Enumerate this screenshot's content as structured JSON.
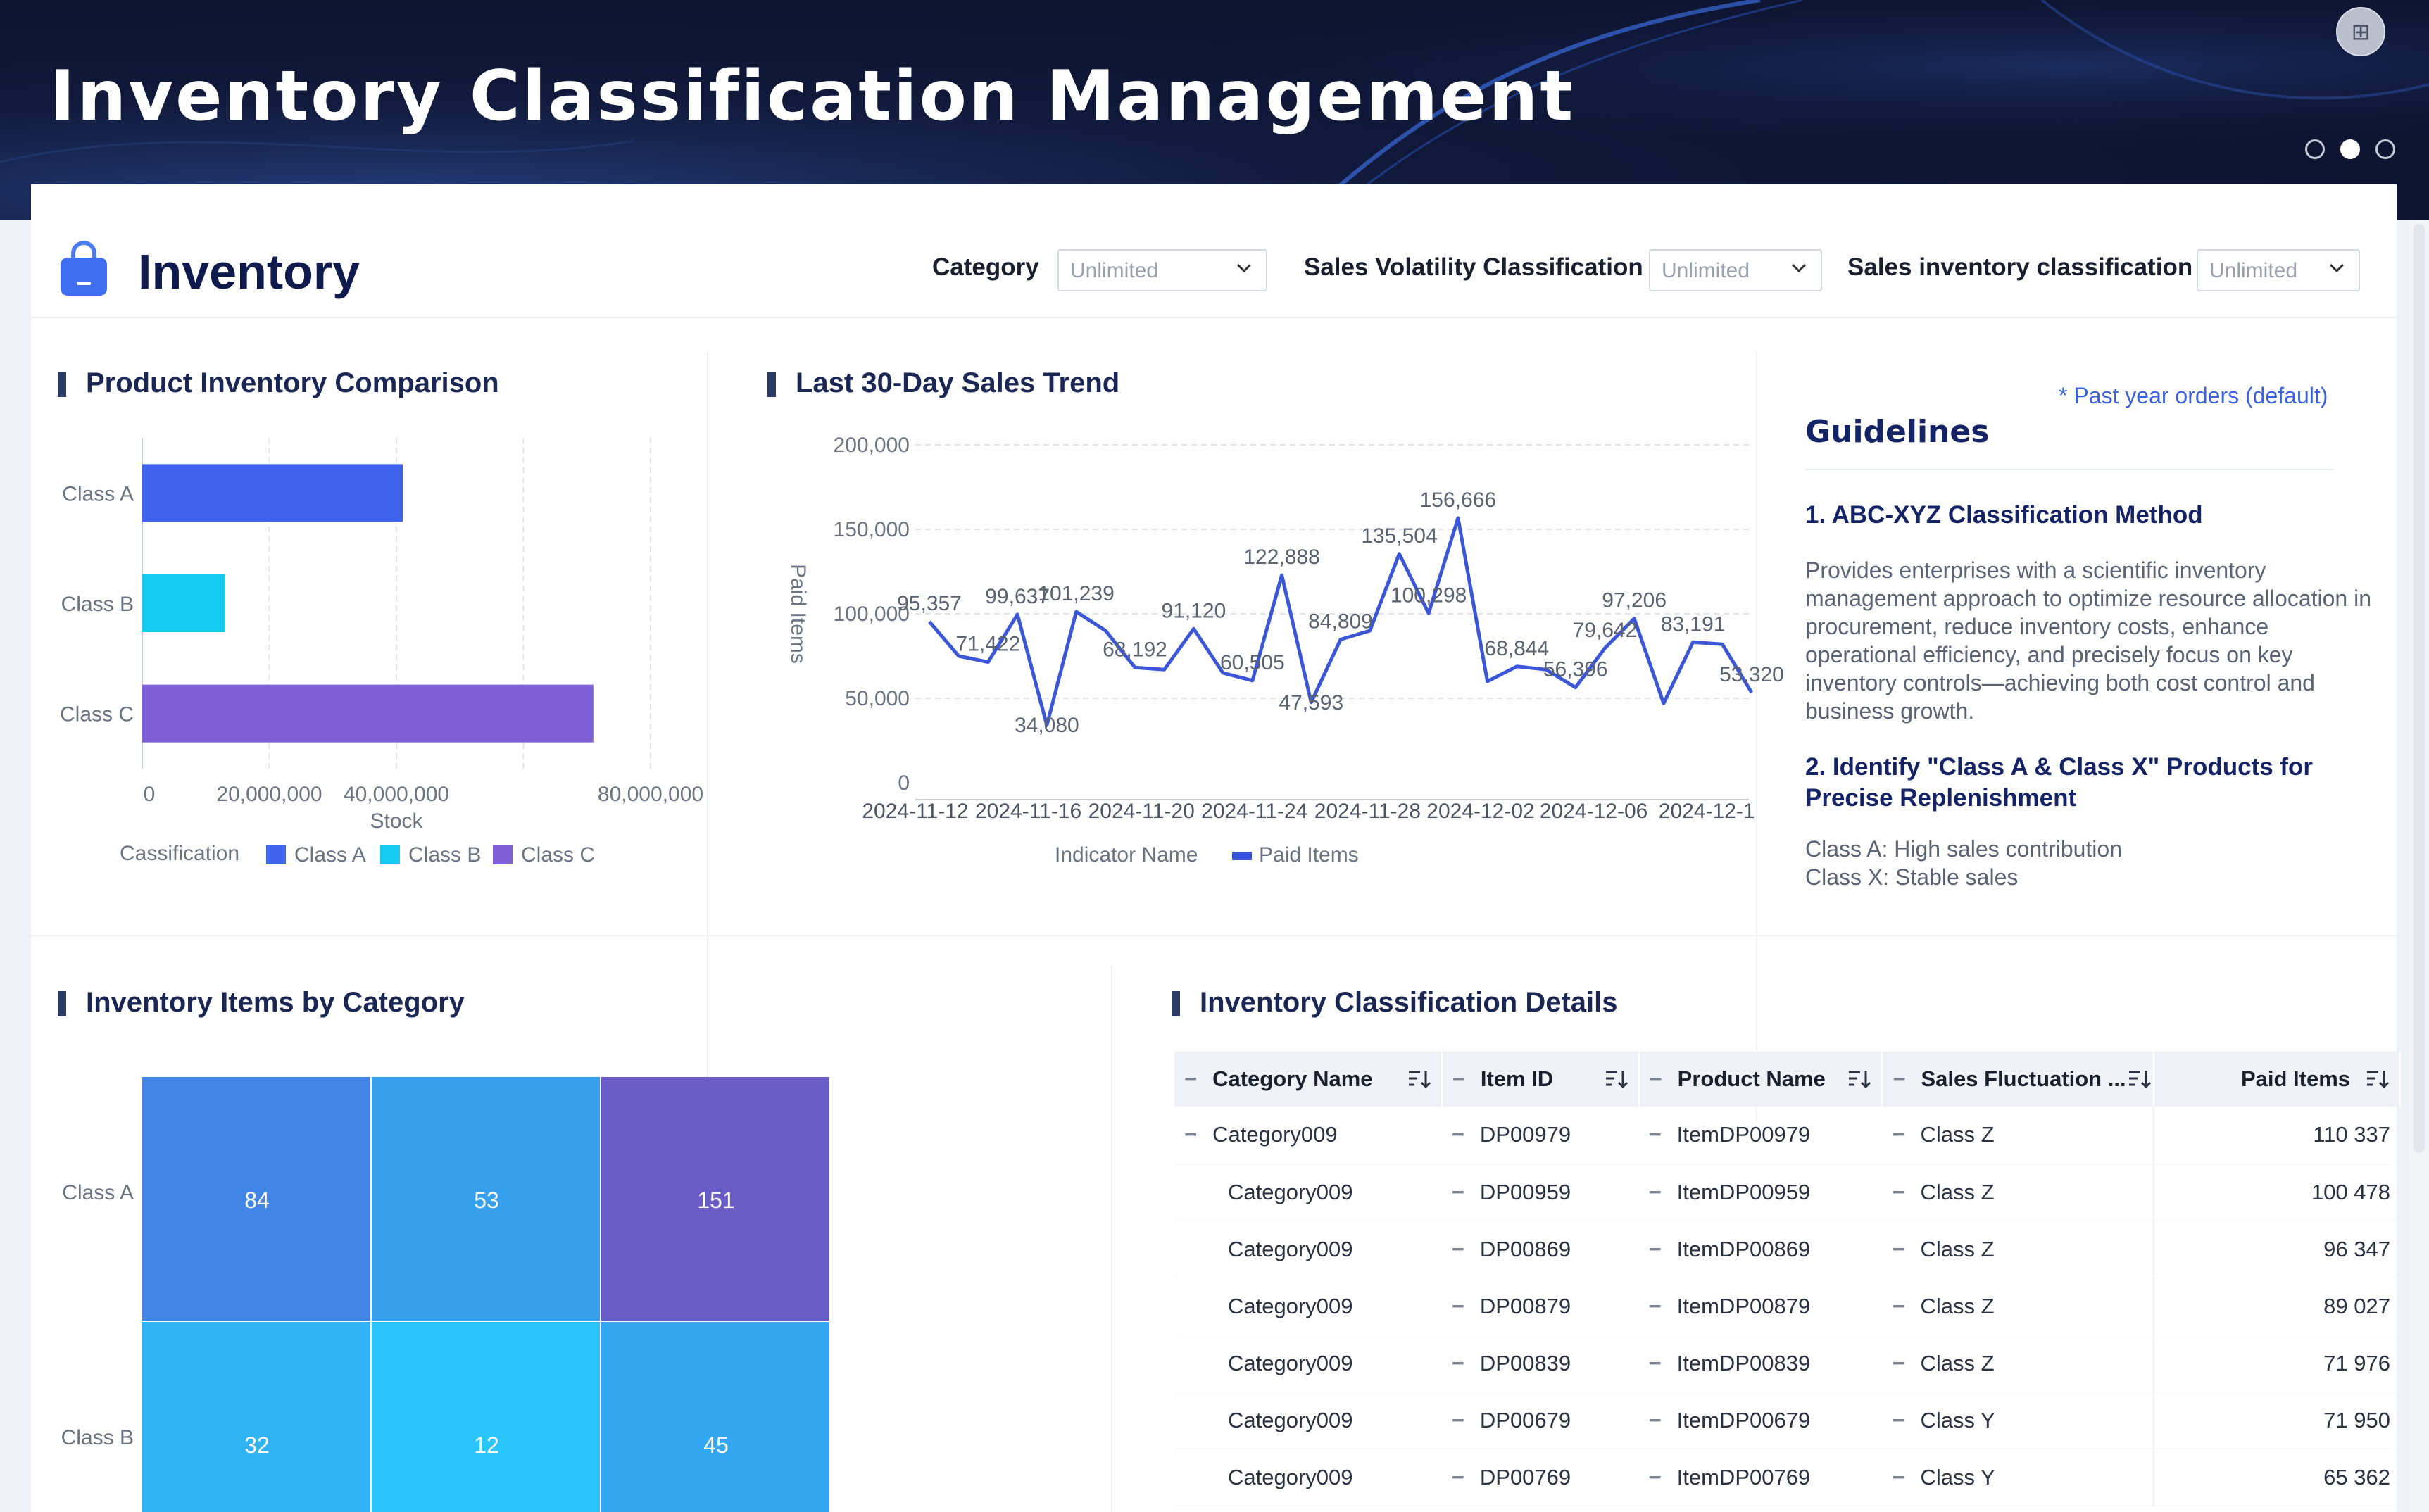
{
  "header": {
    "title": "Inventory Classification Management",
    "pager": [
      "page-1",
      "page-2",
      "page-3"
    ],
    "active_page": 1
  },
  "topbar": {
    "title": "Inventory",
    "filters": [
      {
        "label": "Category",
        "value": "Unlimited"
      },
      {
        "label": "Sales Volatility Classification",
        "value": "Unlimited"
      },
      {
        "label": "Sales inventory classification",
        "value": "Unlimited"
      }
    ]
  },
  "panels": {
    "comparison_title": "Product Inventory Comparison",
    "trend_title": "Last 30-Day Sales Trend",
    "category_title": "Inventory Items by Category",
    "details_title": "Inventory Classification Details"
  },
  "colors": {
    "class_a": "#3f63ec",
    "class_b": "#16c9f0",
    "class_c": "#7f5fd8",
    "line": "#3b56d6"
  },
  "chart_data": [
    {
      "type": "bar",
      "orientation": "horizontal",
      "title": "Product Inventory Comparison",
      "categories": [
        "Class A",
        "Class B",
        "Class C"
      ],
      "values": [
        41000000,
        13000000,
        71000000
      ],
      "xlabel": "Stock",
      "xlim": [
        0,
        80000000
      ],
      "ticks": [
        "0",
        "20,000,000",
        "40,000,000",
        "80,000,000"
      ],
      "legend_title": "Cassification",
      "legend": [
        "Class A",
        "Class B",
        "Class C"
      ]
    },
    {
      "type": "line",
      "title": "Last 30-Day Sales Trend",
      "ylabel": "Paid Items",
      "ylim": [
        0,
        200000
      ],
      "y_ticks": [
        "200,000",
        "150,000",
        "100,000",
        "50,000",
        "0"
      ],
      "x_ticks": [
        "2024-11-12",
        "2024-11-16",
        "2024-11-20",
        "2024-11-24",
        "2024-11-28",
        "2024-12-02",
        "2024-12-06",
        "2024-12-1"
      ],
      "legend_title": "Indicator Name",
      "series": [
        {
          "name": "Paid Items",
          "values": [
            95357,
            75000,
            71422,
            99637,
            34080,
            101239,
            90000,
            68192,
            67000,
            91120,
            65000,
            60505,
            122888,
            47593,
            84809,
            90000,
            135504,
            100298,
            156666,
            60000,
            68844,
            67000,
            56396,
            79642,
            97206,
            47000,
            83191,
            82000,
            53320
          ],
          "labels": {
            "0": "95,357",
            "2": "71,422",
            "3": "99,637",
            "4": "34,080",
            "5": "101,239",
            "7": "68,192",
            "9": "91,120",
            "11": "60,505",
            "12": "122,888",
            "13": "47,593",
            "14": "84,809",
            "16": "135,504",
            "17": "100,298",
            "18": "156,666",
            "20": "68,844",
            "22": "56,396",
            "23": "79,642",
            "24": "97,206",
            "26": "83,191",
            "28": "53,320"
          }
        }
      ]
    },
    {
      "type": "heatmap",
      "title": "Inventory Items by Category",
      "rows": [
        "Class A",
        "Class B"
      ],
      "values": [
        [
          84,
          53,
          151
        ],
        [
          32,
          12,
          45
        ]
      ]
    }
  ],
  "guidelines": {
    "note": "* Past year orders (default)",
    "heading": "Guidelines",
    "h1": "1. ABC-XYZ Classification Method",
    "p1": "Provides enterprises with a scientific inventory management approach to optimize resource allocation in procurement, reduce inventory costs, enhance operational efficiency, and precisely focus on key inventory controls—achieving both cost control and business growth.",
    "h2": "2. Identify \"Class A & Class X\" Products for Precise Replenishment",
    "p2a": "Class A: High sales contribution",
    "p2b": "Class X: Stable sales"
  },
  "table": {
    "columns": [
      "Category Name",
      "Item ID",
      "Product Name",
      "Sales Fluctuation ...",
      "Paid Items"
    ],
    "rows": [
      {
        "category": "Category009",
        "item_id": "DP00979",
        "product": "ItemDP00979",
        "fluct": "Class Z",
        "paid": "110 337"
      },
      {
        "category": "Category009",
        "item_id": "DP00959",
        "product": "ItemDP00959",
        "fluct": "Class Z",
        "paid": "100 478"
      },
      {
        "category": "Category009",
        "item_id": "DP00869",
        "product": "ItemDP00869",
        "fluct": "Class Z",
        "paid": "96 347"
      },
      {
        "category": "Category009",
        "item_id": "DP00879",
        "product": "ItemDP00879",
        "fluct": "Class Z",
        "paid": "89 027"
      },
      {
        "category": "Category009",
        "item_id": "DP00839",
        "product": "ItemDP00839",
        "fluct": "Class Z",
        "paid": "71 976"
      },
      {
        "category": "Category009",
        "item_id": "DP00679",
        "product": "ItemDP00679",
        "fluct": "Class Y",
        "paid": "71 950"
      },
      {
        "category": "Category009",
        "item_id": "DP00769",
        "product": "ItemDP00769",
        "fluct": "Class Y",
        "paid": "65 362"
      }
    ]
  }
}
